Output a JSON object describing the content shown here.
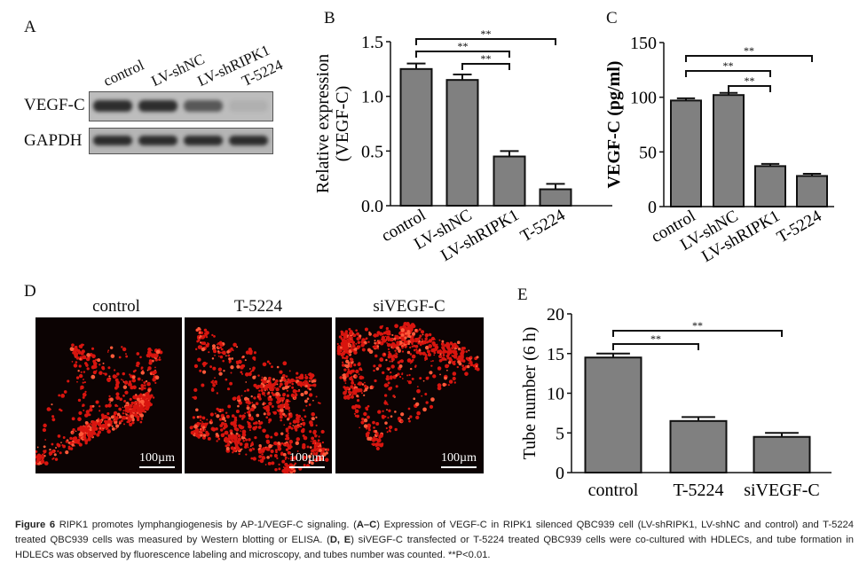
{
  "panels": {
    "a": "A",
    "b": "B",
    "c": "C",
    "d": "D",
    "e": "E"
  },
  "western_blot": {
    "lanes": [
      "control",
      "LV-shNC",
      "LV-shRIPK1",
      "T-5224"
    ],
    "rows": [
      {
        "label": "VEGF-C",
        "intensity": [
          0.85,
          0.85,
          0.6,
          0.05
        ]
      },
      {
        "label": "GAPDH",
        "intensity": [
          0.85,
          0.85,
          0.85,
          0.85
        ]
      }
    ]
  },
  "microscopy": {
    "labels": [
      "control",
      "T-5224",
      "siVEGF-C"
    ],
    "scale_bar": "100µm"
  },
  "chart_data": [
    {
      "type": "bar",
      "panel": "B",
      "categories": [
        "control",
        "LV-shNC",
        "LV-shRIPK1",
        "T-5224"
      ],
      "values": [
        1.25,
        1.15,
        0.45,
        0.15
      ],
      "errors": [
        0.05,
        0.05,
        0.05,
        0.05
      ],
      "ylabel": "Relative expression (VEGF-C)",
      "ylabel_lines": [
        "Relative expression",
        "(VEGF-C)"
      ],
      "ylim": [
        0,
        1.5
      ],
      "yticks": [
        "0.0",
        "0.5",
        "1.0",
        "1.5"
      ],
      "ytick_values": [
        0,
        0.5,
        1.0,
        1.5
      ],
      "significance": [
        {
          "from": 0,
          "to": 3,
          "label": "**"
        },
        {
          "from": 0,
          "to": 2,
          "label": "**"
        },
        {
          "from": 1,
          "to": 2,
          "label": "**"
        }
      ],
      "bar_color": "#808080"
    },
    {
      "type": "bar",
      "panel": "C",
      "categories": [
        "control",
        "LV-shNC",
        "LV-shRIPK1",
        "T-5224"
      ],
      "values": [
        97,
        102,
        37,
        28
      ],
      "errors": [
        2,
        2,
        2,
        2
      ],
      "ylabel": "VEGF-C (pg/ml)",
      "ylabel_lines": [
        "VEGF-C (pg/ml)"
      ],
      "ylim": [
        0,
        150
      ],
      "yticks": [
        "0",
        "50",
        "100",
        "150"
      ],
      "ytick_values": [
        0,
        50,
        100,
        150
      ],
      "significance": [
        {
          "from": 0,
          "to": 3,
          "label": "**"
        },
        {
          "from": 0,
          "to": 2,
          "label": "**"
        },
        {
          "from": 1,
          "to": 2,
          "label": "**"
        }
      ],
      "bar_color": "#808080"
    },
    {
      "type": "bar",
      "panel": "E",
      "categories": [
        "control",
        "T-5224",
        "siVEGF-C"
      ],
      "values": [
        14.5,
        6.5,
        4.5
      ],
      "errors": [
        0.5,
        0.5,
        0.5
      ],
      "ylabel": "Tube number (6 h)",
      "ylabel_lines": [
        "Tube number (6 h)"
      ],
      "ylim": [
        0,
        20
      ],
      "yticks": [
        "0",
        "5",
        "10",
        "15",
        "20"
      ],
      "ytick_values": [
        0,
        5,
        10,
        15,
        20
      ],
      "significance": [
        {
          "from": 0,
          "to": 2,
          "label": "**"
        },
        {
          "from": 0,
          "to": 1,
          "label": "**"
        }
      ],
      "bar_color": "#808080"
    }
  ],
  "caption": {
    "figure_label": "Figure 6",
    "text_parts": [
      " RIPK1 promotes lymphangiogenesis by AP-1/VEGF-C signaling. (",
      "A–C",
      ") Expression of VEGF-C in RIPK1 silenced QBC939 cell (LV-shRIPK1, LV-shNC and control) and T-5224 treated QBC939 cells was measured by Western blotting or ELISA. (",
      "D, E",
      ") siVEGF-C transfected or T-5224 treated QBC939 cells were co-cultured with HDLECs, and tube formation in HDLECs was observed by fluorescence labeling and microscopy, and tubes number was counted. **P<0.01."
    ]
  }
}
